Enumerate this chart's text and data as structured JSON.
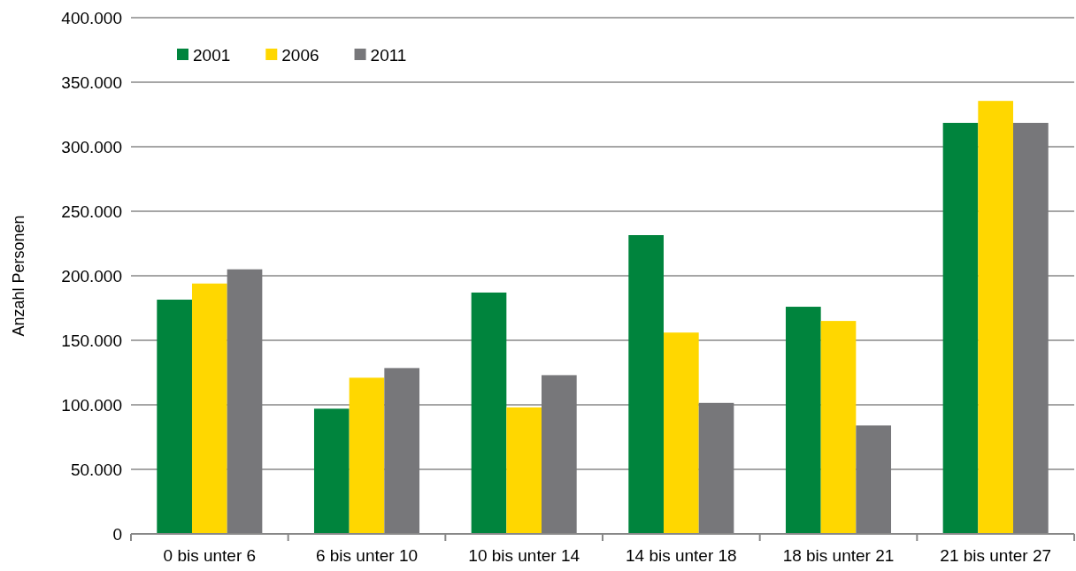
{
  "chart_data": {
    "type": "bar",
    "ylabel": "Anzahl Personen",
    "categories": [
      "0 bis unter 6",
      "6 bis unter 10",
      "10 bis unter 14",
      "14 bis unter 18",
      "18 bis unter 21",
      "21 bis unter 27"
    ],
    "series": [
      {
        "name": "2001",
        "color": "#00843d",
        "values": [
          181500,
          97000,
          187000,
          231500,
          176000,
          318500
        ]
      },
      {
        "name": "2006",
        "color": "#ffd700",
        "values": [
          194000,
          121000,
          98000,
          156000,
          165000,
          335500
        ]
      },
      {
        "name": "2011",
        "color": "#77777a",
        "values": [
          205000,
          128500,
          123000,
          101500,
          84000,
          318500
        ]
      }
    ],
    "ylim": [
      0,
      400000
    ],
    "yticks": [
      0,
      {
        "value": 50000,
        "label": "50.000"
      },
      {
        "value": 100000,
        "label": "100.000"
      },
      {
        "value": 150000,
        "label": "150.000"
      },
      {
        "value": 200000,
        "label": "200.000"
      },
      {
        "value": 250000,
        "label": "250.000"
      },
      {
        "value": 300000,
        "label": "300.000"
      },
      {
        "value": 350000,
        "label": "350.000"
      },
      {
        "value": 400000,
        "label": "400.000"
      }
    ],
    "grid": "y",
    "legend": "top left"
  }
}
